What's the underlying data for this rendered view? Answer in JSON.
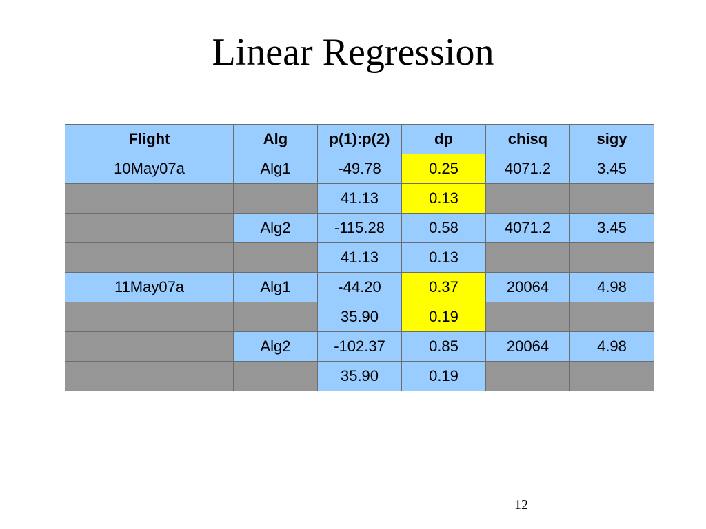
{
  "slide": {
    "title": "Linear Regression",
    "page_number": "12"
  },
  "colors": {
    "header_bg": "#99ccff",
    "data_bg": "#99ccff",
    "empty_bg": "#969696",
    "highlight_bg": "#ffff00",
    "border": "#6d6d6d"
  },
  "table": {
    "headers": [
      "Flight",
      "Alg",
      "p(1):p(2)",
      "dp",
      "chisq",
      "sigy"
    ],
    "rows": [
      {
        "flight": "10May07a",
        "alg": "Alg1",
        "p": "-49.78",
        "dp": "0.25",
        "chisq": "4071.2",
        "sigy": "3.45",
        "dp_highlight": true
      },
      {
        "flight": "",
        "alg": "",
        "p": "41.13",
        "dp": "0.13",
        "chisq": "",
        "sigy": "",
        "dp_highlight": true
      },
      {
        "flight": "",
        "alg": "Alg2",
        "p": "-115.28",
        "dp": "0.58",
        "chisq": "4071.2",
        "sigy": "3.45",
        "dp_highlight": false
      },
      {
        "flight": "",
        "alg": "",
        "p": "41.13",
        "dp": "0.13",
        "chisq": "",
        "sigy": "",
        "dp_highlight": false
      },
      {
        "flight": "11May07a",
        "alg": "Alg1",
        "p": "-44.20",
        "dp": "0.37",
        "chisq": "20064",
        "sigy": "4.98",
        "dp_highlight": true
      },
      {
        "flight": "",
        "alg": "",
        "p": "35.90",
        "dp": "0.19",
        "chisq": "",
        "sigy": "",
        "dp_highlight": true
      },
      {
        "flight": "",
        "alg": "Alg2",
        "p": "-102.37",
        "dp": "0.85",
        "chisq": "20064",
        "sigy": "4.98",
        "dp_highlight": false
      },
      {
        "flight": "",
        "alg": "",
        "p": "35.90",
        "dp": "0.19",
        "chisq": "",
        "sigy": "",
        "dp_highlight": false
      }
    ]
  }
}
